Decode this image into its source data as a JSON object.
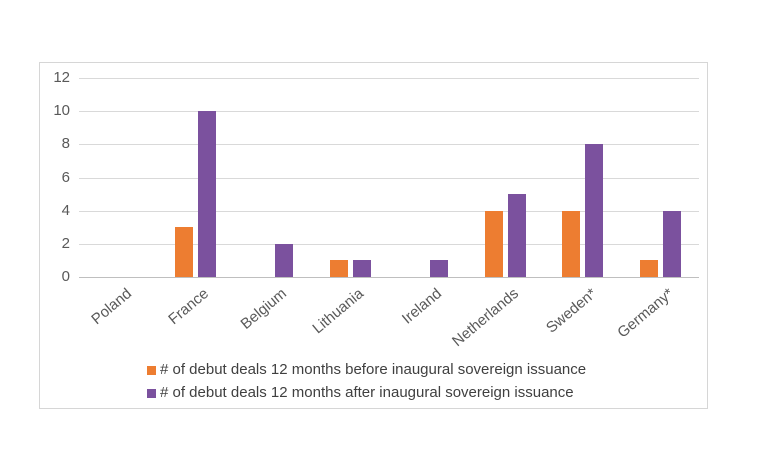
{
  "chart_data": {
    "type": "bar",
    "title": "",
    "xlabel": "",
    "ylabel": "",
    "categories": [
      "Poland",
      "France",
      "Belgium",
      "Lithuania",
      "Ireland",
      "Netherlands",
      "Sweden*",
      "Germany*"
    ],
    "series": [
      {
        "name": "# of debut deals 12 months before inaugural sovereign issuance",
        "color": "#ED7D31",
        "values": [
          0,
          3,
          0,
          1,
          0,
          4,
          4,
          1
        ]
      },
      {
        "name": "# of debut deals 12 months after inaugural sovereign issuance",
        "color": "#7B519E",
        "values": [
          0,
          10,
          2,
          1,
          1,
          5,
          8,
          4
        ]
      }
    ],
    "ylim": [
      0,
      12
    ],
    "yticks": [
      0,
      2,
      4,
      6,
      8,
      10,
      12
    ],
    "grid": "horizontal",
    "legend_position": "bottom",
    "colors": {
      "gridline": "#d9d9d9",
      "axis_line": "#bfbfbf",
      "tick_text": "#595959",
      "legend_text": "#404040",
      "frame_border": "#d6d6d6",
      "background": "#ffffff"
    }
  }
}
